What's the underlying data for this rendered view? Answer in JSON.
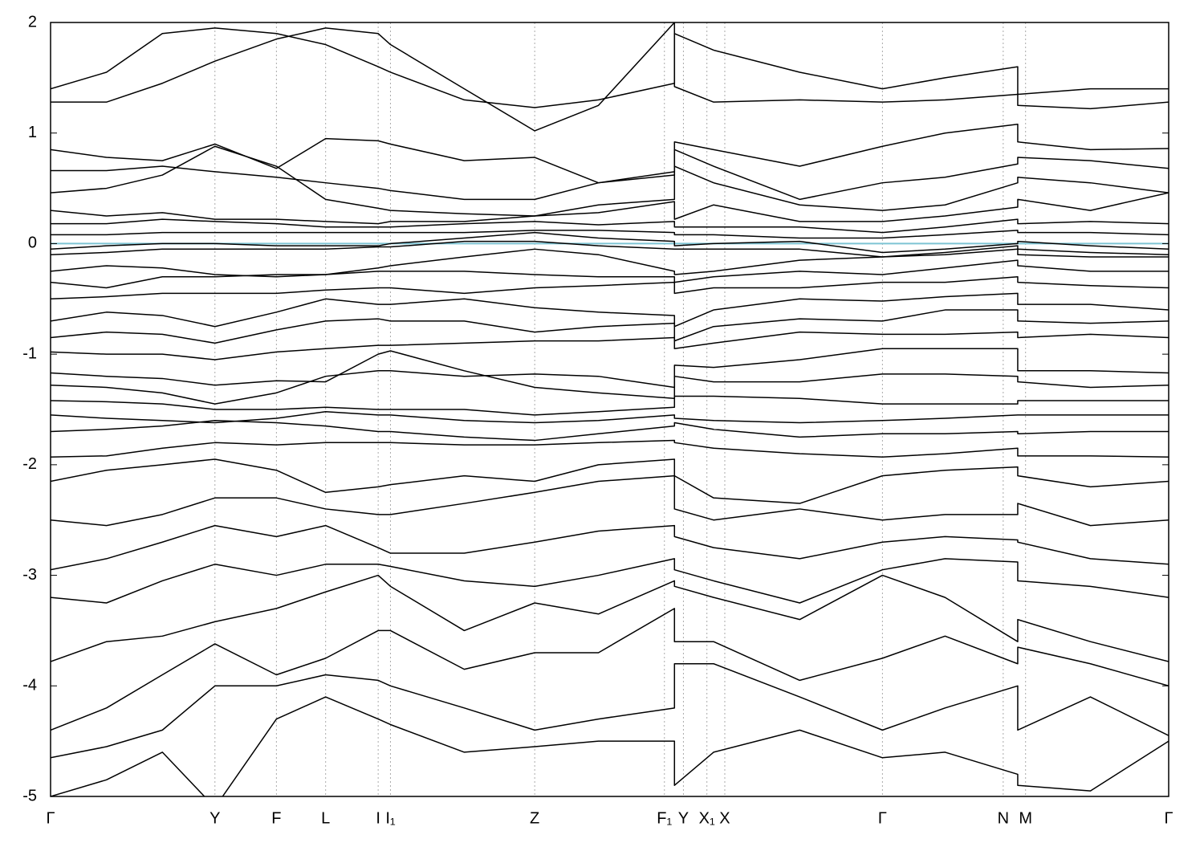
{
  "chart_data": {
    "type": "line",
    "color": "#000000",
    "grid": true,
    "reference_line": {
      "value": 0,
      "color": "#7ec4d4"
    },
    "xlim": [
      0,
      1
    ],
    "ylim": [
      -5,
      2
    ],
    "yticks": [
      -5,
      -4,
      -3,
      -2,
      -1,
      0,
      1,
      2
    ],
    "xticks": [
      {
        "value": 0,
        "label": "Γ"
      },
      {
        "value": 0.147,
        "label": "Y"
      },
      {
        "value": 0.202,
        "label": "F"
      },
      {
        "value": 0.246,
        "label": "L"
      },
      {
        "value": 0.293,
        "label": "I"
      },
      {
        "value": 0.304,
        "label": "I₁"
      },
      {
        "value": 0.433,
        "label": "Z"
      },
      {
        "value": 0.549,
        "label": "F₁"
      },
      {
        "value": 0.566,
        "label": "Y"
      },
      {
        "value": 0.587,
        "label": "X₁"
      },
      {
        "value": 0.603,
        "label": "X"
      },
      {
        "value": 0.744,
        "label": "Γ"
      },
      {
        "value": 0.852,
        "label": "N"
      },
      {
        "value": 0.872,
        "label": "M"
      },
      {
        "value": 1,
        "label": "Γ"
      }
    ],
    "x": [
      0,
      0.05,
      0.1,
      0.147,
      0.202,
      0.246,
      0.293,
      0.304,
      0.37,
      0.433,
      0.49,
      0.558,
      0.558,
      0.593,
      0.67,
      0.744,
      0.8,
      0.865,
      0.865,
      0.93,
      1
    ],
    "series": [
      {
        "values": [
          1.4,
          1.55,
          1.9,
          1.95,
          1.9,
          1.8,
          1.6,
          1.55,
          1.3,
          1.23,
          1.3,
          1.45,
          1.9,
          1.75,
          1.55,
          1.4,
          1.5,
          1.6,
          1.35,
          1.4,
          1.4
        ]
      },
      {
        "values": [
          1.28,
          1.28,
          1.45,
          1.65,
          1.85,
          1.95,
          1.9,
          1.8,
          1.4,
          1.02,
          1.25,
          2.0,
          1.42,
          1.28,
          1.3,
          1.28,
          1.3,
          1.35,
          1.25,
          1.22,
          1.28
        ]
      },
      {
        "values": [
          0.85,
          0.78,
          0.75,
          0.9,
          0.68,
          0.95,
          0.93,
          0.9,
          0.75,
          0.78,
          0.55,
          0.65,
          0.92,
          0.85,
          0.7,
          0.88,
          1.0,
          1.08,
          0.92,
          0.85,
          0.86
        ]
      },
      {
        "values": [
          0.66,
          0.66,
          0.7,
          0.65,
          0.6,
          0.55,
          0.5,
          0.48,
          0.4,
          0.4,
          0.55,
          0.62,
          0.85,
          0.7,
          0.4,
          0.55,
          0.6,
          0.72,
          0.78,
          0.75,
          0.68
        ]
      },
      {
        "values": [
          0.46,
          0.5,
          0.62,
          0.88,
          0.7,
          0.4,
          0.32,
          0.3,
          0.27,
          0.25,
          0.35,
          0.4,
          0.7,
          0.55,
          0.35,
          0.3,
          0.35,
          0.55,
          0.6,
          0.55,
          0.46
        ]
      },
      {
        "values": [
          0.3,
          0.25,
          0.28,
          0.22,
          0.22,
          0.2,
          0.18,
          0.2,
          0.2,
          0.25,
          0.28,
          0.38,
          0.22,
          0.35,
          0.2,
          0.2,
          0.25,
          0.33,
          0.4,
          0.3,
          0.46
        ]
      },
      {
        "values": [
          0.18,
          0.18,
          0.22,
          0.2,
          0.18,
          0.15,
          0.15,
          0.15,
          0.18,
          0.2,
          0.17,
          0.2,
          0.15,
          0.15,
          0.15,
          0.1,
          0.15,
          0.22,
          0.18,
          0.2,
          0.18
        ]
      },
      {
        "values": [
          0.08,
          0.08,
          0.1,
          0.1,
          0.1,
          0.1,
          0.1,
          0.1,
          0.1,
          0.12,
          0.12,
          0.1,
          0.08,
          0.08,
          0.05,
          0.05,
          0.08,
          0.12,
          0.1,
          0.1,
          0.08
        ]
      },
      {
        "values": [
          -0.05,
          -0.02,
          0.0,
          0.0,
          -0.02,
          -0.02,
          -0.02,
          0.0,
          0.05,
          0.1,
          0.05,
          0.02,
          -0.02,
          0.0,
          0.02,
          -0.08,
          -0.05,
          0.0,
          0.02,
          -0.02,
          -0.05
        ]
      },
      {
        "values": [
          -0.1,
          -0.08,
          -0.05,
          -0.05,
          -0.05,
          -0.05,
          -0.03,
          -0.03,
          0.02,
          0.02,
          -0.02,
          -0.05,
          -0.05,
          -0.05,
          -0.05,
          -0.12,
          -0.1,
          -0.05,
          -0.05,
          -0.08,
          -0.1
        ]
      },
      {
        "values": [
          -0.25,
          -0.2,
          -0.22,
          -0.28,
          -0.3,
          -0.28,
          -0.22,
          -0.2,
          -0.12,
          -0.05,
          -0.1,
          -0.25,
          -0.28,
          -0.25,
          -0.15,
          -0.12,
          -0.08,
          -0.02,
          -0.1,
          -0.12,
          -0.12
        ]
      },
      {
        "values": [
          -0.35,
          -0.4,
          -0.3,
          -0.3,
          -0.28,
          -0.28,
          -0.25,
          -0.25,
          -0.25,
          -0.28,
          -0.3,
          -0.3,
          -0.35,
          -0.3,
          -0.25,
          -0.28,
          -0.22,
          -0.15,
          -0.2,
          -0.25,
          -0.25
        ]
      },
      {
        "values": [
          -0.5,
          -0.48,
          -0.45,
          -0.45,
          -0.45,
          -0.42,
          -0.4,
          -0.4,
          -0.45,
          -0.4,
          -0.38,
          -0.35,
          -0.45,
          -0.4,
          -0.4,
          -0.35,
          -0.35,
          -0.3,
          -0.35,
          -0.38,
          -0.4
        ]
      },
      {
        "values": [
          -0.7,
          -0.62,
          -0.65,
          -0.75,
          -0.62,
          -0.5,
          -0.55,
          -0.55,
          -0.5,
          -0.58,
          -0.62,
          -0.65,
          -0.75,
          -0.6,
          -0.5,
          -0.52,
          -0.48,
          -0.45,
          -0.55,
          -0.55,
          -0.6
        ]
      },
      {
        "values": [
          -0.85,
          -0.8,
          -0.82,
          -0.9,
          -0.78,
          -0.7,
          -0.68,
          -0.7,
          -0.7,
          -0.8,
          -0.75,
          -0.72,
          -0.88,
          -0.75,
          -0.68,
          -0.7,
          -0.6,
          -0.6,
          -0.7,
          -0.72,
          -0.7
        ]
      },
      {
        "values": [
          -0.98,
          -1.0,
          -1.0,
          -1.05,
          -0.98,
          -0.95,
          -0.92,
          -0.92,
          -0.9,
          -0.88,
          -0.88,
          -0.85,
          -0.95,
          -0.9,
          -0.8,
          -0.82,
          -0.82,
          -0.8,
          -0.85,
          -0.82,
          -0.85
        ]
      },
      {
        "values": [
          -1.17,
          -1.2,
          -1.22,
          -1.28,
          -1.24,
          -1.25,
          -1.0,
          -0.97,
          -1.15,
          -1.3,
          -1.35,
          -1.4,
          -1.1,
          -1.12,
          -1.05,
          -0.95,
          -0.95,
          -0.95,
          -1.15,
          -1.15,
          -1.17
        ]
      },
      {
        "values": [
          -1.28,
          -1.3,
          -1.35,
          -1.45,
          -1.35,
          -1.2,
          -1.15,
          -1.15,
          -1.2,
          -1.18,
          -1.2,
          -1.3,
          -1.2,
          -1.25,
          -1.25,
          -1.18,
          -1.18,
          -1.2,
          -1.25,
          -1.3,
          -1.28
        ]
      },
      {
        "values": [
          -1.42,
          -1.43,
          -1.45,
          -1.5,
          -1.5,
          -1.48,
          -1.5,
          -1.5,
          -1.5,
          -1.55,
          -1.52,
          -1.48,
          -1.38,
          -1.38,
          -1.4,
          -1.45,
          -1.45,
          -1.45,
          -1.42,
          -1.42,
          -1.42
        ]
      },
      {
        "values": [
          -1.55,
          -1.58,
          -1.6,
          -1.62,
          -1.58,
          -1.52,
          -1.55,
          -1.55,
          -1.6,
          -1.62,
          -1.6,
          -1.55,
          -1.58,
          -1.6,
          -1.62,
          -1.6,
          -1.58,
          -1.55,
          -1.55,
          -1.55,
          -1.55
        ]
      },
      {
        "values": [
          -1.7,
          -1.68,
          -1.65,
          -1.6,
          -1.62,
          -1.65,
          -1.7,
          -1.7,
          -1.75,
          -1.78,
          -1.72,
          -1.65,
          -1.62,
          -1.68,
          -1.75,
          -1.72,
          -1.72,
          -1.7,
          -1.72,
          -1.7,
          -1.7
        ]
      },
      {
        "values": [
          -1.93,
          -1.92,
          -1.85,
          -1.8,
          -1.82,
          -1.8,
          -1.8,
          -1.8,
          -1.82,
          -1.82,
          -1.8,
          -1.78,
          -1.8,
          -1.85,
          -1.9,
          -1.93,
          -1.9,
          -1.85,
          -1.92,
          -1.92,
          -1.93
        ]
      },
      {
        "values": [
          -2.15,
          -2.05,
          -2.0,
          -1.95,
          -2.05,
          -2.25,
          -2.2,
          -2.18,
          -2.1,
          -2.15,
          -2.0,
          -1.95,
          -2.1,
          -2.3,
          -2.35,
          -2.1,
          -2.05,
          -2.02,
          -2.1,
          -2.2,
          -2.15
        ]
      },
      {
        "values": [
          -2.5,
          -2.55,
          -2.45,
          -2.3,
          -2.3,
          -2.4,
          -2.45,
          -2.45,
          -2.35,
          -2.25,
          -2.15,
          -2.1,
          -2.4,
          -2.5,
          -2.4,
          -2.5,
          -2.45,
          -2.45,
          -2.35,
          -2.55,
          -2.5
        ]
      },
      {
        "values": [
          -2.95,
          -2.85,
          -2.7,
          -2.55,
          -2.65,
          -2.55,
          -2.75,
          -2.8,
          -2.8,
          -2.7,
          -2.6,
          -2.55,
          -2.65,
          -2.75,
          -2.85,
          -2.7,
          -2.65,
          -2.68,
          -2.7,
          -2.85,
          -2.9
        ]
      },
      {
        "values": [
          -3.2,
          -3.25,
          -3.05,
          -2.9,
          -3.0,
          -2.9,
          -2.9,
          -2.92,
          -3.05,
          -3.1,
          -3.0,
          -2.85,
          -2.95,
          -3.05,
          -3.25,
          -2.95,
          -2.85,
          -2.88,
          -3.05,
          -3.1,
          -3.2
        ]
      },
      {
        "values": [
          -3.78,
          -3.6,
          -3.55,
          -3.42,
          -3.3,
          -3.15,
          -3.0,
          -3.1,
          -3.5,
          -3.25,
          -3.35,
          -3.05,
          -3.1,
          -3.2,
          -3.4,
          -3.0,
          -3.2,
          -3.6,
          -3.4,
          -3.6,
          -3.78
        ]
      },
      {
        "values": [
          -4.4,
          -4.2,
          -3.9,
          -3.62,
          -3.9,
          -3.75,
          -3.5,
          -3.5,
          -3.85,
          -3.7,
          -3.7,
          -3.3,
          -3.6,
          -3.6,
          -3.95,
          -3.75,
          -3.55,
          -3.8,
          -3.65,
          -3.8,
          -4.0
        ]
      },
      {
        "values": [
          -4.65,
          -4.55,
          -4.4,
          -4.0,
          -4.0,
          -3.9,
          -3.95,
          -4.0,
          -4.2,
          -4.4,
          -4.3,
          -4.2,
          -3.8,
          -3.8,
          -4.1,
          -4.4,
          -4.2,
          -4.0,
          -4.4,
          -4.1,
          -4.45
        ]
      },
      {
        "values": [
          -5.0,
          -4.85,
          -4.6,
          -5.1,
          -4.3,
          -4.1,
          -4.3,
          -4.35,
          -4.6,
          -4.55,
          -4.5,
          -4.5,
          -4.9,
          -4.6,
          -4.4,
          -4.65,
          -4.6,
          -4.8,
          -4.9,
          -4.95,
          -4.5
        ]
      }
    ]
  }
}
